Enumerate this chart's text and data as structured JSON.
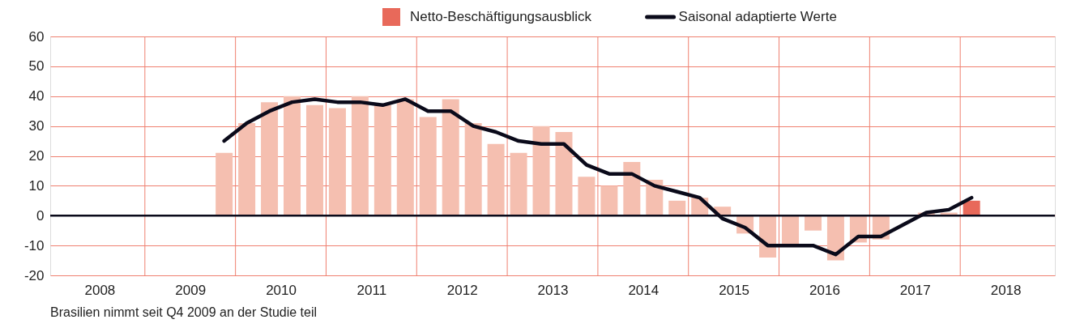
{
  "chart_data": {
    "type": "bar",
    "x": [
      2009.875,
      2010.125,
      2010.375,
      2010.625,
      2010.875,
      2011.125,
      2011.375,
      2011.625,
      2011.875,
      2012.125,
      2012.375,
      2012.625,
      2012.875,
      2013.125,
      2013.375,
      2013.625,
      2013.875,
      2014.125,
      2014.375,
      2014.625,
      2014.875,
      2015.125,
      2015.375,
      2015.625,
      2015.875,
      2016.125,
      2016.375,
      2016.625,
      2016.875,
      2017.125,
      2017.375,
      2017.625,
      2017.875,
      2018.125
    ],
    "series": [
      {
        "name": "Netto-Beschäftigungsausblick",
        "color": "#e8695a",
        "colors": [
          "#f5bfb0",
          "#f5bfb0",
          "#f5bfb0",
          "#f5bfb0",
          "#f5bfb0",
          "#f5bfb0",
          "#f5bfb0",
          "#f5bfb0",
          "#f5bfb0",
          "#f5bfb0",
          "#f5bfb0",
          "#f5bfb0",
          "#f5bfb0",
          "#f5bfb0",
          "#f5bfb0",
          "#f5bfb0",
          "#f5bfb0",
          "#f5bfb0",
          "#f5bfb0",
          "#f5bfb0",
          "#f5bfb0",
          "#f5bfb0",
          "#f5bfb0",
          "#f5bfb0",
          "#f5bfb0",
          "#f5bfb0",
          "#f5bfb0",
          "#f5bfb0",
          "#f5bfb0",
          "#f5bfb0",
          "#f5bfb0",
          "#f5bfb0",
          "#f5bfb0",
          "#e8695a"
        ],
        "values": [
          21,
          31,
          38,
          40,
          37,
          36,
          40,
          37,
          39,
          33,
          39,
          31,
          24,
          21,
          30,
          28,
          13,
          10,
          18,
          12,
          5,
          6,
          3,
          -6,
          -14,
          -10,
          -5,
          -15,
          -9,
          -8,
          null,
          1,
          1,
          5
        ]
      },
      {
        "name": "Saisonal adaptierte Werte",
        "type": "line",
        "color": "#0a0a1a",
        "values": [
          25,
          31,
          35,
          38,
          39,
          38,
          38,
          37,
          39,
          35,
          35,
          30,
          28,
          25,
          24,
          24,
          17,
          14,
          14,
          10,
          8,
          6,
          -1,
          -4,
          -10,
          -10,
          -10,
          -13,
          -7,
          -7,
          -3,
          1,
          2,
          6
        ]
      }
    ],
    "xlim": [
      2008,
      2019
    ],
    "xticks": [
      {
        "value": 2008.5,
        "label": "2008"
      },
      {
        "value": 2009,
        "label": null
      },
      {
        "value": 2009.5,
        "label": "2009"
      },
      {
        "value": 2010,
        "label": null
      },
      {
        "value": 2010.5,
        "label": "2010"
      },
      {
        "value": 2011,
        "label": null
      },
      {
        "value": 2011.5,
        "label": "2011"
      },
      {
        "value": 2012,
        "label": null
      },
      {
        "value": 2012.5,
        "label": "2012"
      },
      {
        "value": 2013,
        "label": null
      },
      {
        "value": 2013.5,
        "label": "2013"
      },
      {
        "value": 2014,
        "label": null
      },
      {
        "value": 2014.5,
        "label": "2014"
      },
      {
        "value": 2015,
        "label": null
      },
      {
        "value": 2015.5,
        "label": "2015"
      },
      {
        "value": 2016,
        "label": null
      },
      {
        "value": 2016.5,
        "label": "2016"
      },
      {
        "value": 2017,
        "label": null
      },
      {
        "value": 2017.5,
        "label": "2017"
      },
      {
        "value": 2018,
        "label": null
      },
      {
        "value": 2018.5,
        "label": "2018"
      }
    ],
    "ylim": [
      -20,
      60
    ],
    "yticks": [
      -20,
      -10,
      0,
      10,
      20,
      30,
      40,
      50,
      60
    ],
    "grid": true,
    "legend": "top",
    "ref_lines": [
      {
        "axis": "y",
        "value": 0,
        "color": "#0a0a1a"
      }
    ],
    "annotations": [
      "Brasilien nimmt seit Q4 2009 an der Studie teil"
    ]
  }
}
